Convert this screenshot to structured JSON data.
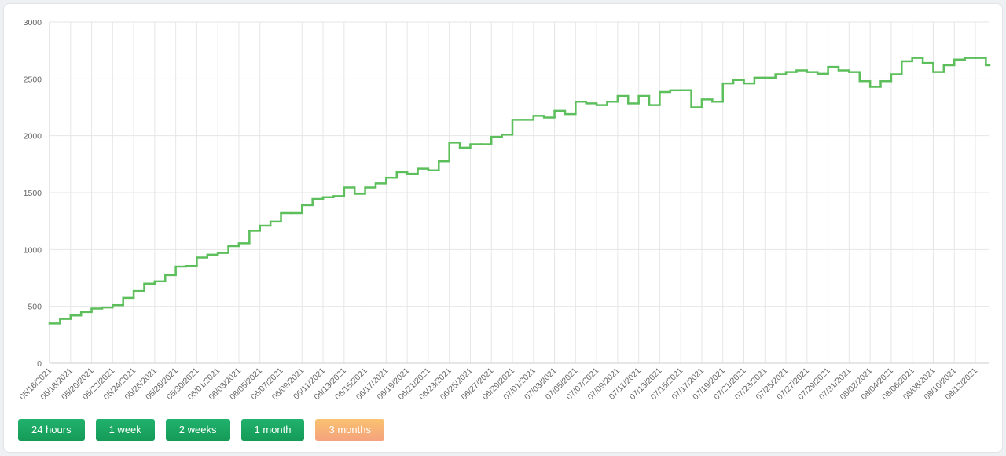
{
  "chart_data": {
    "type": "step-line",
    "categories": [
      "05/16/2021",
      null,
      "05/18/2021",
      null,
      "05/20/2021",
      null,
      "05/22/2021",
      null,
      "05/24/2021",
      null,
      "05/26/2021",
      null,
      "05/28/2021",
      null,
      "05/30/2021",
      null,
      "06/01/2021",
      null,
      "06/03/2021",
      null,
      "06/05/2021",
      null,
      "06/07/2021",
      null,
      "06/09/2021",
      null,
      "06/11/2021",
      null,
      "06/13/2021",
      null,
      "06/15/2021",
      null,
      "06/17/2021",
      null,
      "06/19/2021",
      null,
      "06/21/2021",
      null,
      "06/23/2021",
      null,
      "06/25/2021",
      null,
      "06/27/2021",
      null,
      "06/29/2021",
      null,
      "07/01/2021",
      null,
      "07/03/2021",
      null,
      "07/05/2021",
      null,
      "07/07/2021",
      null,
      "07/09/2021",
      null,
      "07/11/2021",
      null,
      "07/13/2021",
      null,
      "07/15/2021",
      null,
      "07/17/2021",
      null,
      "07/19/2021",
      null,
      "07/21/2021",
      null,
      "07/23/2021",
      null,
      "07/25/2021",
      null,
      "07/27/2021",
      null,
      "07/29/2021",
      null,
      "07/31/2021",
      null,
      "08/02/2021",
      null,
      "08/04/2021",
      null,
      "08/06/2021",
      null,
      "08/08/2021",
      null,
      "08/10/2021",
      null,
      "08/12/2021",
      null
    ],
    "series": [
      {
        "color": "#5cbf5c",
        "values": [
          350,
          390,
          420,
          450,
          480,
          490,
          510,
          575,
          635,
          700,
          720,
          775,
          850,
          855,
          930,
          955,
          970,
          1030,
          1055,
          1165,
          1210,
          1245,
          1320,
          1320,
          1390,
          1445,
          1460,
          1470,
          1545,
          1490,
          1545,
          1580,
          1630,
          1680,
          1665,
          1710,
          1695,
          1775,
          1940,
          1895,
          1925,
          1925,
          1990,
          2010,
          2140,
          2140,
          2175,
          2160,
          2220,
          2190,
          2300,
          2285,
          2270,
          2300,
          2350,
          2285,
          2350,
          2270,
          2385,
          2400,
          2400,
          2250,
          2320,
          2300,
          2460,
          2490,
          2460,
          2510,
          2510,
          2540,
          2560,
          2575,
          2560,
          2545,
          2605,
          2575,
          2560,
          2480,
          2430,
          2480,
          2540,
          2655,
          2685,
          2640,
          2560,
          2620,
          2670,
          2685,
          2685,
          2620
        ]
      }
    ],
    "ylim": [
      0,
      3000
    ],
    "yticks": [
      0,
      500,
      1000,
      1500,
      2000,
      2500,
      3000
    ],
    "grid": true
  },
  "buttons": [
    "24 hours",
    "1 week",
    "2 weeks",
    "1 month",
    "3 months"
  ]
}
